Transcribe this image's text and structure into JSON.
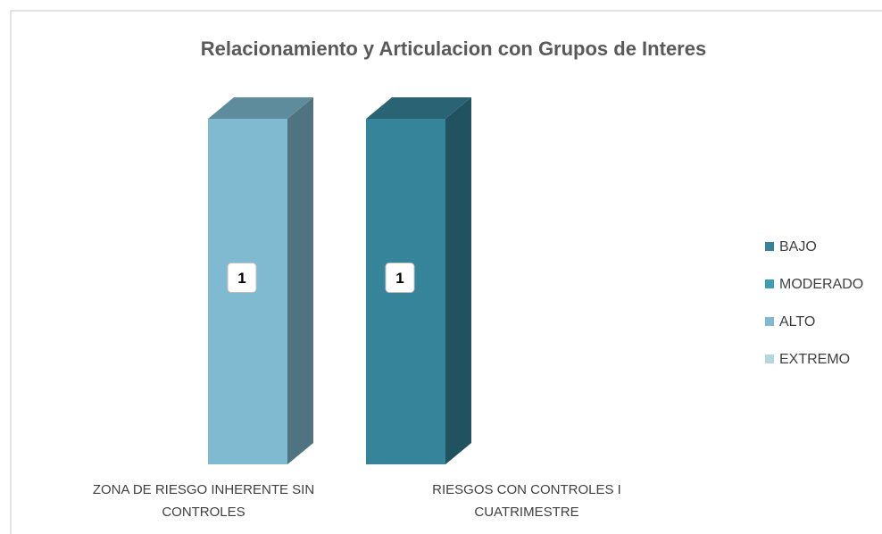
{
  "chart_data": {
    "type": "bar3d_stacked",
    "title": "Relacionamiento y Articulacion con Grupos de Interes",
    "categories": [
      "ZONA DE RIESGO INHERENTE SIN CONTROLES",
      "RIESGOS CON CONTROLES I CUATRIMESTRE"
    ],
    "series": [
      {
        "name": "BAJO",
        "color": "#36849a",
        "values": [
          null,
          1
        ]
      },
      {
        "name": "MODERADO",
        "color": "#3d9db3",
        "values": [
          null,
          null
        ]
      },
      {
        "name": "ALTO",
        "color": "#7fbad0",
        "values": [
          1,
          null
        ]
      },
      {
        "name": "EXTREMO",
        "color": "#b3d6e2",
        "values": [
          null,
          null
        ]
      }
    ],
    "legend": "right"
  }
}
